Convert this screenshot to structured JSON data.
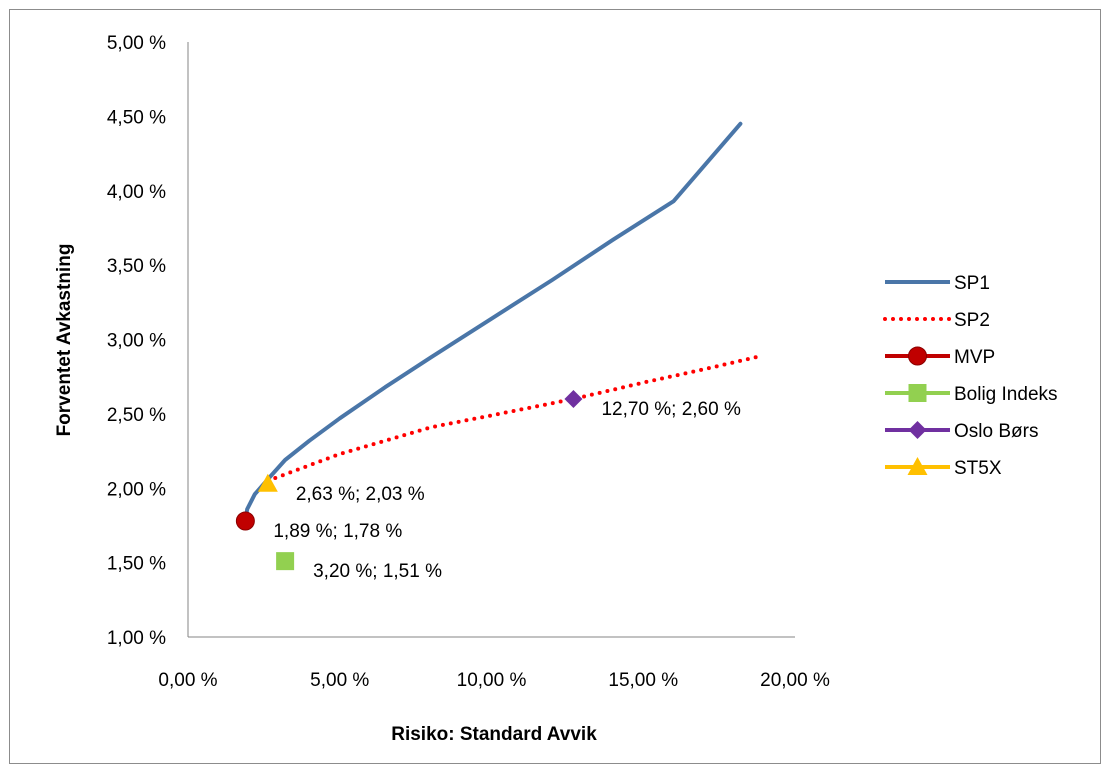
{
  "chart_data": {
    "type": "line",
    "title": "",
    "xlabel": "Risiko: Standard Avvik",
    "ylabel": "Forventet Avkastning",
    "xlim": [
      0,
      20
    ],
    "ylim": [
      1,
      5
    ],
    "x_ticks": [
      0,
      5,
      10,
      15,
      20
    ],
    "y_ticks": [
      1,
      1.5,
      2,
      2.5,
      3,
      3.5,
      4,
      4.5,
      5
    ],
    "x_tick_labels": [
      "0,00 %",
      "5,00 %",
      "10,00 %",
      "15,00 %",
      "20,00 %"
    ],
    "y_tick_labels": [
      "1,00 %",
      "1,50 %",
      "2,00 %",
      "2,50 %",
      "3,00 %",
      "3,50 %",
      "4,00 %",
      "4,50 %",
      "5,00 %"
    ],
    "grid": false,
    "legend_position": "right",
    "series": [
      {
        "name": "SP1",
        "style": "solid-line",
        "color": "#4a76a8",
        "x": [
          1.89,
          1.95,
          2.2,
          2.63,
          3.2,
          4.0,
          5.0,
          6.5,
          8.0,
          10.0,
          12.0,
          14.0,
          16.0,
          18.2
        ],
        "y": [
          1.78,
          1.86,
          1.96,
          2.06,
          2.19,
          2.32,
          2.47,
          2.68,
          2.88,
          3.14,
          3.4,
          3.67,
          3.93,
          4.45
        ]
      },
      {
        "name": "SP2",
        "style": "dotted-line",
        "color": "#ff0000",
        "x": [
          2.63,
          5.0,
          8.0,
          10.0,
          12.7,
          15.0,
          17.0,
          18.9
        ],
        "y": [
          2.05,
          2.23,
          2.41,
          2.49,
          2.6,
          2.71,
          2.8,
          2.89
        ]
      },
      {
        "name": "MVP",
        "style": "circle-marker",
        "color": "#c00000",
        "x": [
          1.89
        ],
        "y": [
          1.78
        ],
        "label": "1,89 %; 1,78 %"
      },
      {
        "name": "Bolig Indeks",
        "style": "square-marker",
        "color": "#92d050",
        "x": [
          3.2
        ],
        "y": [
          1.51
        ],
        "label": "3,20 %; 1,51 %"
      },
      {
        "name": "Oslo Børs",
        "style": "diamond-marker",
        "color": "#7030a0",
        "x": [
          12.7
        ],
        "y": [
          2.6
        ],
        "label": "12,70 %; 2,60 %"
      },
      {
        "name": "ST5X",
        "style": "triangle-marker",
        "color": "#ffc000",
        "x": [
          2.63
        ],
        "y": [
          2.03
        ],
        "label": "2,63 %; 2,03 %"
      }
    ]
  }
}
